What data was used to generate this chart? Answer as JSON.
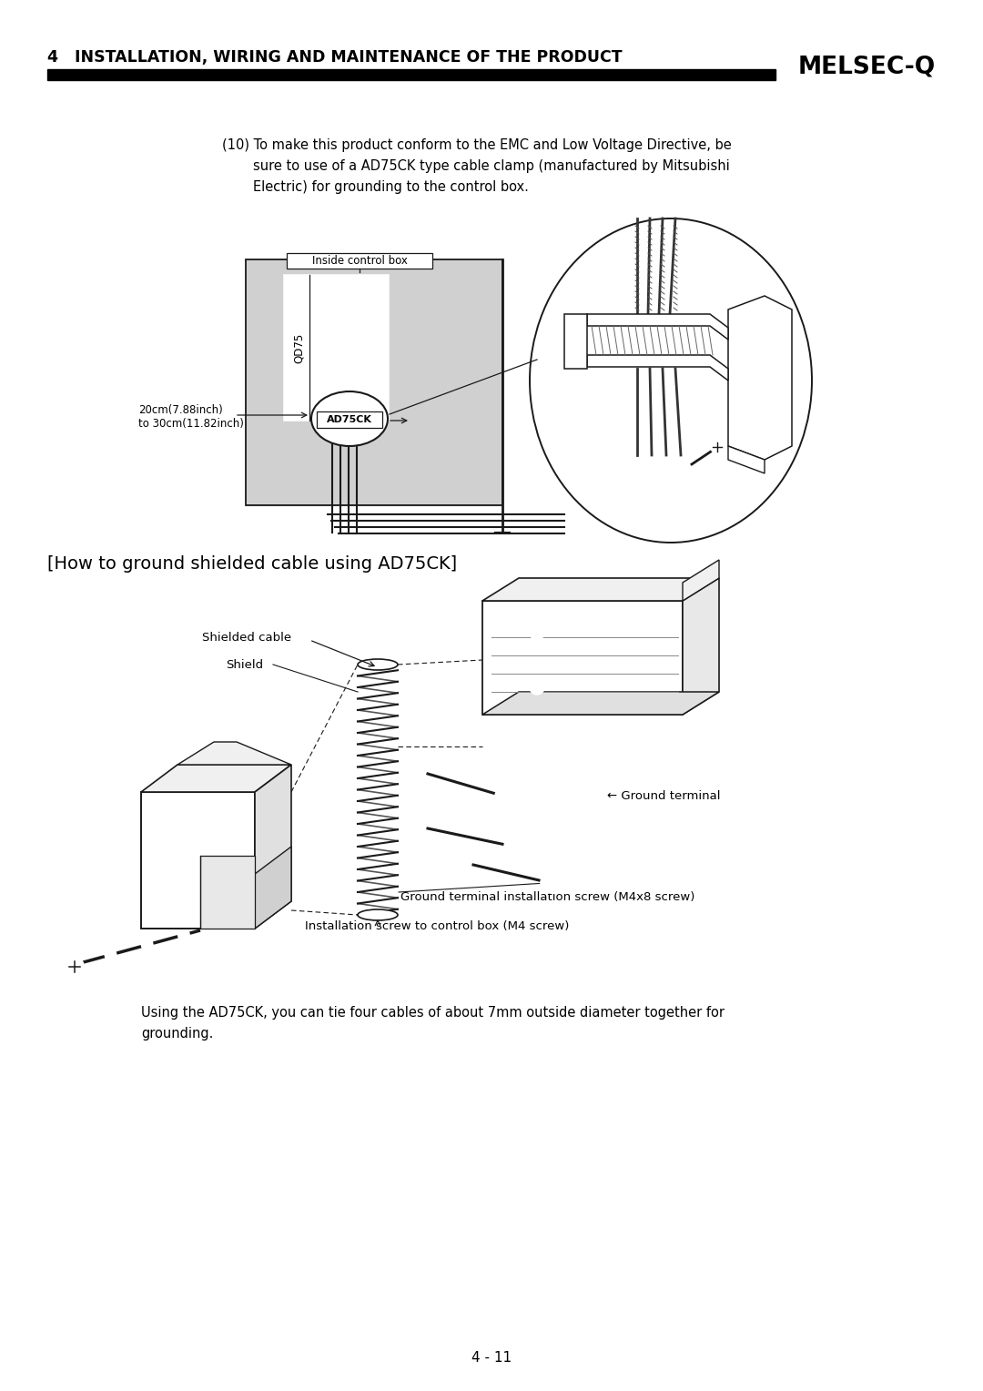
{
  "page_title": "4   INSTALLATION, WIRING AND MAINTENANCE OF THE PRODUCT",
  "brand": "MELSEC-Q",
  "page_number": "4 - 11",
  "para_text_line1": "(10) To make this product conform to the EMC and Low Voltage Directive, be",
  "para_text_line2": "sure to use of a AD75CK type cable clamp (manufactured by Mitsubishi",
  "para_text_line3": "Electric) for grounding to the control box.",
  "label_inside_control_box": "Inside control box",
  "label_qd75": "QD75",
  "label_ad75ck": "AD75CK",
  "label_dimension": "20cm(7.88inch)\nto 30cm(11.82inch)",
  "section_heading": "[How to ground shielded cable using AD75CK]",
  "label_shielded_cable": "Shielded cable",
  "label_shield": "Shield",
  "label_ground_terminal": "← Ground terminal",
  "label_ground_screw": "Ground terminal installation screw (M4x8 screw)",
  "label_install_screw": "Installation screw to control box (M4 screw)",
  "footer_text_line1": "Using the AD75CK, you can tie four cables of about 7mm outside diameter together for",
  "footer_text_line2": "grounding.",
  "bg_color": "#ffffff",
  "text_color": "#000000",
  "header_bar_color": "#000000",
  "lc": "#1a1a1a",
  "box_fill_color": "#d0d0d0"
}
